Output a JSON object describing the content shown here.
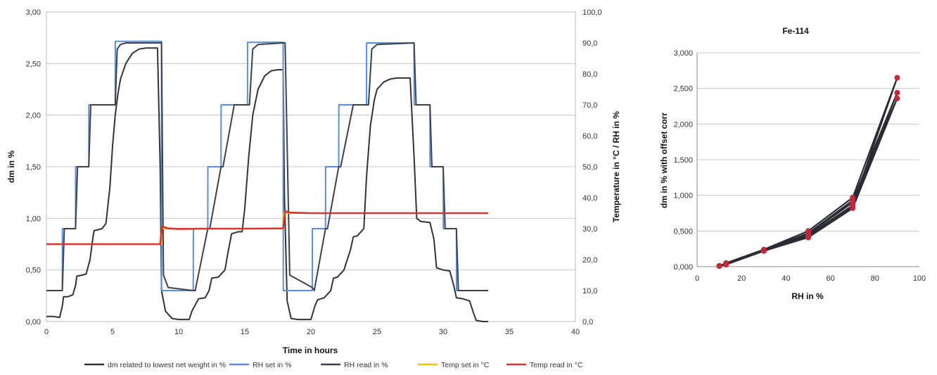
{
  "chart_data": [
    {
      "type": "line",
      "xlabel": "Time in hours",
      "ylabel": "dm in %",
      "y2label": "Temperature in °C / RH in %",
      "xlim": [
        0,
        40
      ],
      "ylim": [
        0,
        3
      ],
      "y2lim": [
        0,
        100
      ],
      "xticks": [
        "0",
        "5",
        "10",
        "15",
        "20",
        "25",
        "30",
        "35",
        "40"
      ],
      "yticks": [
        "0,00",
        "0,50",
        "1,00",
        "1,50",
        "2,00",
        "2,50",
        "3,00"
      ],
      "y2ticks": [
        "0,0",
        "10,0",
        "20,0",
        "30,0",
        "40,0",
        "50,0",
        "60,0",
        "70,0",
        "80,0",
        "90,0",
        "100,0"
      ],
      "grid": "horizontal",
      "legend_position": "bottom",
      "series": [
        {
          "name": "dm  related to lowest net weight in   %",
          "axis": "left",
          "color": "#333333",
          "x": [
            0,
            0.5,
            1.0,
            1.2,
            1.3,
            1.6,
            2.0,
            2.2,
            2.3,
            2.7,
            3.0,
            3.3,
            3.5,
            3.6,
            3.9,
            4.2,
            4.5,
            4.8,
            5.0,
            5.2,
            5.4,
            5.6,
            6.0,
            6.5,
            7.0,
            7.5,
            8.0,
            8.4,
            8.6,
            8.7,
            9.0,
            9.5,
            10.0,
            10.8,
            11.0,
            11.5,
            12.0,
            12.3,
            12.5,
            13.0,
            13.5,
            13.7,
            14.0,
            14.5,
            14.8,
            15.0,
            15.3,
            15.6,
            16.0,
            16.5,
            17.0,
            17.5,
            17.9,
            18.0,
            18.2,
            18.5,
            19.0,
            19.5,
            20.0,
            20.3,
            20.5,
            21.0,
            21.5,
            21.7,
            22.0,
            22.5,
            23.0,
            23.2,
            23.5,
            24.0,
            24.2,
            24.5,
            24.8,
            25.0,
            25.5,
            26.0,
            26.5,
            27.0,
            27.5,
            27.8,
            28.0,
            28.3,
            29.0,
            29.3,
            29.5,
            30.0,
            30.5,
            30.8,
            31.0,
            31.5,
            32.0,
            32.3,
            32.5,
            33.0,
            33.4
          ],
          "values": [
            0.05,
            0.05,
            0.04,
            0.15,
            0.24,
            0.24,
            0.26,
            0.35,
            0.44,
            0.45,
            0.46,
            0.6,
            0.8,
            0.88,
            0.89,
            0.9,
            0.95,
            1.3,
            1.7,
            2.0,
            2.2,
            2.35,
            2.5,
            2.6,
            2.64,
            2.65,
            2.65,
            2.65,
            1.5,
            0.3,
            0.1,
            0.03,
            0.02,
            0.02,
            0.1,
            0.22,
            0.23,
            0.3,
            0.42,
            0.43,
            0.5,
            0.65,
            0.85,
            0.87,
            0.87,
            1.1,
            1.6,
            2.0,
            2.25,
            2.38,
            2.43,
            2.44,
            2.44,
            1.2,
            0.2,
            0.03,
            0.02,
            0.02,
            0.02,
            0.15,
            0.21,
            0.23,
            0.3,
            0.42,
            0.43,
            0.5,
            0.7,
            0.82,
            0.83,
            0.9,
            1.4,
            1.9,
            2.15,
            2.25,
            2.32,
            2.35,
            2.36,
            2.36,
            2.36,
            1.6,
            1.0,
            0.97,
            0.96,
            0.8,
            0.52,
            0.5,
            0.49,
            0.35,
            0.23,
            0.22,
            0.2,
            0.08,
            0.01,
            0.0,
            0.0
          ]
        },
        {
          "name": "RH set in %",
          "axis": "right",
          "color": "#5b8fd6",
          "x": [
            0,
            1.2,
            1.21,
            2.2,
            2.21,
            3.2,
            3.21,
            4.2,
            4.21,
            5.2,
            5.21,
            8.7,
            8.71,
            11.1,
            11.11,
            12.2,
            12.21,
            13.2,
            13.21,
            14.2,
            14.21,
            15.2,
            15.21,
            17.9,
            17.91,
            20.1,
            20.11,
            21.1,
            21.11,
            22.1,
            22.11,
            23.2,
            23.21,
            24.2,
            24.21,
            27.8,
            27.81,
            29.0,
            29.01,
            30.0,
            30.01,
            31.0,
            31.01,
            32.1,
            32.11,
            33.4
          ],
          "values": [
            10,
            10,
            30,
            30,
            50,
            50,
            70,
            70,
            70,
            70,
            90.5,
            90.5,
            10,
            10,
            30,
            30,
            50,
            50,
            70,
            70,
            70,
            70,
            90.2,
            90.2,
            10,
            10,
            30,
            30,
            50,
            50,
            70,
            70,
            70,
            70,
            90,
            90,
            70,
            70,
            50,
            50,
            30,
            30,
            10,
            10,
            10,
            10
          ]
        },
        {
          "name": "RH read in %",
          "axis": "right",
          "color": "#404048",
          "x": [
            0,
            1.2,
            1.35,
            2.2,
            2.35,
            3.2,
            3.35,
            4.2,
            4.35,
            5.2,
            5.35,
            5.6,
            6.0,
            8.7,
            8.85,
            9.2,
            11.1,
            11.25,
            12.2,
            12.35,
            13.2,
            13.35,
            14.2,
            14.35,
            15.2,
            15.35,
            15.6,
            16.0,
            17.9,
            18.05,
            18.4,
            20.1,
            20.25,
            21.1,
            21.25,
            22.1,
            22.25,
            23.2,
            23.35,
            24.2,
            24.35,
            24.6,
            25.0,
            27.8,
            27.95,
            29.0,
            29.15,
            30.0,
            30.15,
            31.0,
            31.15,
            32.1,
            32.25,
            33.4
          ],
          "values": [
            10,
            10,
            30,
            30,
            50,
            50,
            70,
            70,
            70,
            70,
            88,
            89.5,
            90,
            90,
            15,
            11,
            10,
            10,
            30,
            30,
            50,
            50,
            70,
            70,
            70,
            70,
            88,
            89.5,
            90,
            90,
            15,
            11,
            10,
            30,
            30,
            50,
            50,
            70,
            70,
            70,
            70,
            88,
            89.5,
            90,
            70,
            70,
            50,
            50,
            30,
            30,
            10,
            10,
            10,
            10
          ]
        },
        {
          "name": "Temp set in °C",
          "axis": "right",
          "color": "#e8c21a",
          "x": [
            0,
            8.7,
            8.71,
            17.9,
            17.91,
            33.4
          ],
          "values": [
            25,
            25,
            30,
            30,
            35,
            35
          ]
        },
        {
          "name": "Temp read in °C",
          "axis": "right",
          "color": "#d9342b",
          "x": [
            0,
            8.6,
            8.75,
            9.2,
            10.0,
            12.0,
            15.0,
            17.9,
            18.05,
            18.4,
            20.0,
            25.0,
            33.4
          ],
          "values": [
            25,
            25,
            30.7,
            30.1,
            29.9,
            30,
            30,
            30.1,
            35.7,
            35.2,
            35.0,
            35,
            35
          ]
        }
      ]
    },
    {
      "type": "scatter",
      "title": "Fe-114",
      "xlabel": "RH in %",
      "ylabel": "dm in % with offset corr",
      "xlim": [
        0,
        100
      ],
      "ylim": [
        0,
        3
      ],
      "xticks": [
        "0",
        "20",
        "40",
        "60",
        "80",
        "100"
      ],
      "yticks": [
        "0,000",
        "0,500",
        "1,000",
        "1,500",
        "2,000",
        "2,500",
        "3,000"
      ],
      "grid": "horizontal",
      "series": [
        {
          "color": "#2b2b33",
          "marker_color": "#c0283c",
          "cycles": [
            {
              "x": [
                10,
                13,
                30,
                50,
                70,
                90,
                70,
                50,
                30,
                13,
                10
              ],
              "y": [
                0.01,
                0.04,
                0.23,
                0.44,
                0.86,
                2.65,
                0.97,
                0.5,
                0.24,
                0.05,
                0.01
              ]
            },
            {
              "x": [
                10,
                13,
                30,
                50,
                70,
                90,
                70,
                50,
                30,
                13,
                10
              ],
              "y": [
                0.01,
                0.03,
                0.22,
                0.42,
                0.84,
                2.44,
                0.93,
                0.47,
                0.23,
                0.04,
                0.01
              ]
            },
            {
              "x": [
                10,
                13,
                30,
                50,
                70,
                90,
                70,
                50,
                30,
                13,
                10
              ],
              "y": [
                0.01,
                0.03,
                0.22,
                0.41,
                0.82,
                2.36,
                0.9,
                0.46,
                0.22,
                0.04,
                0.01
              ]
            }
          ]
        }
      ]
    }
  ]
}
